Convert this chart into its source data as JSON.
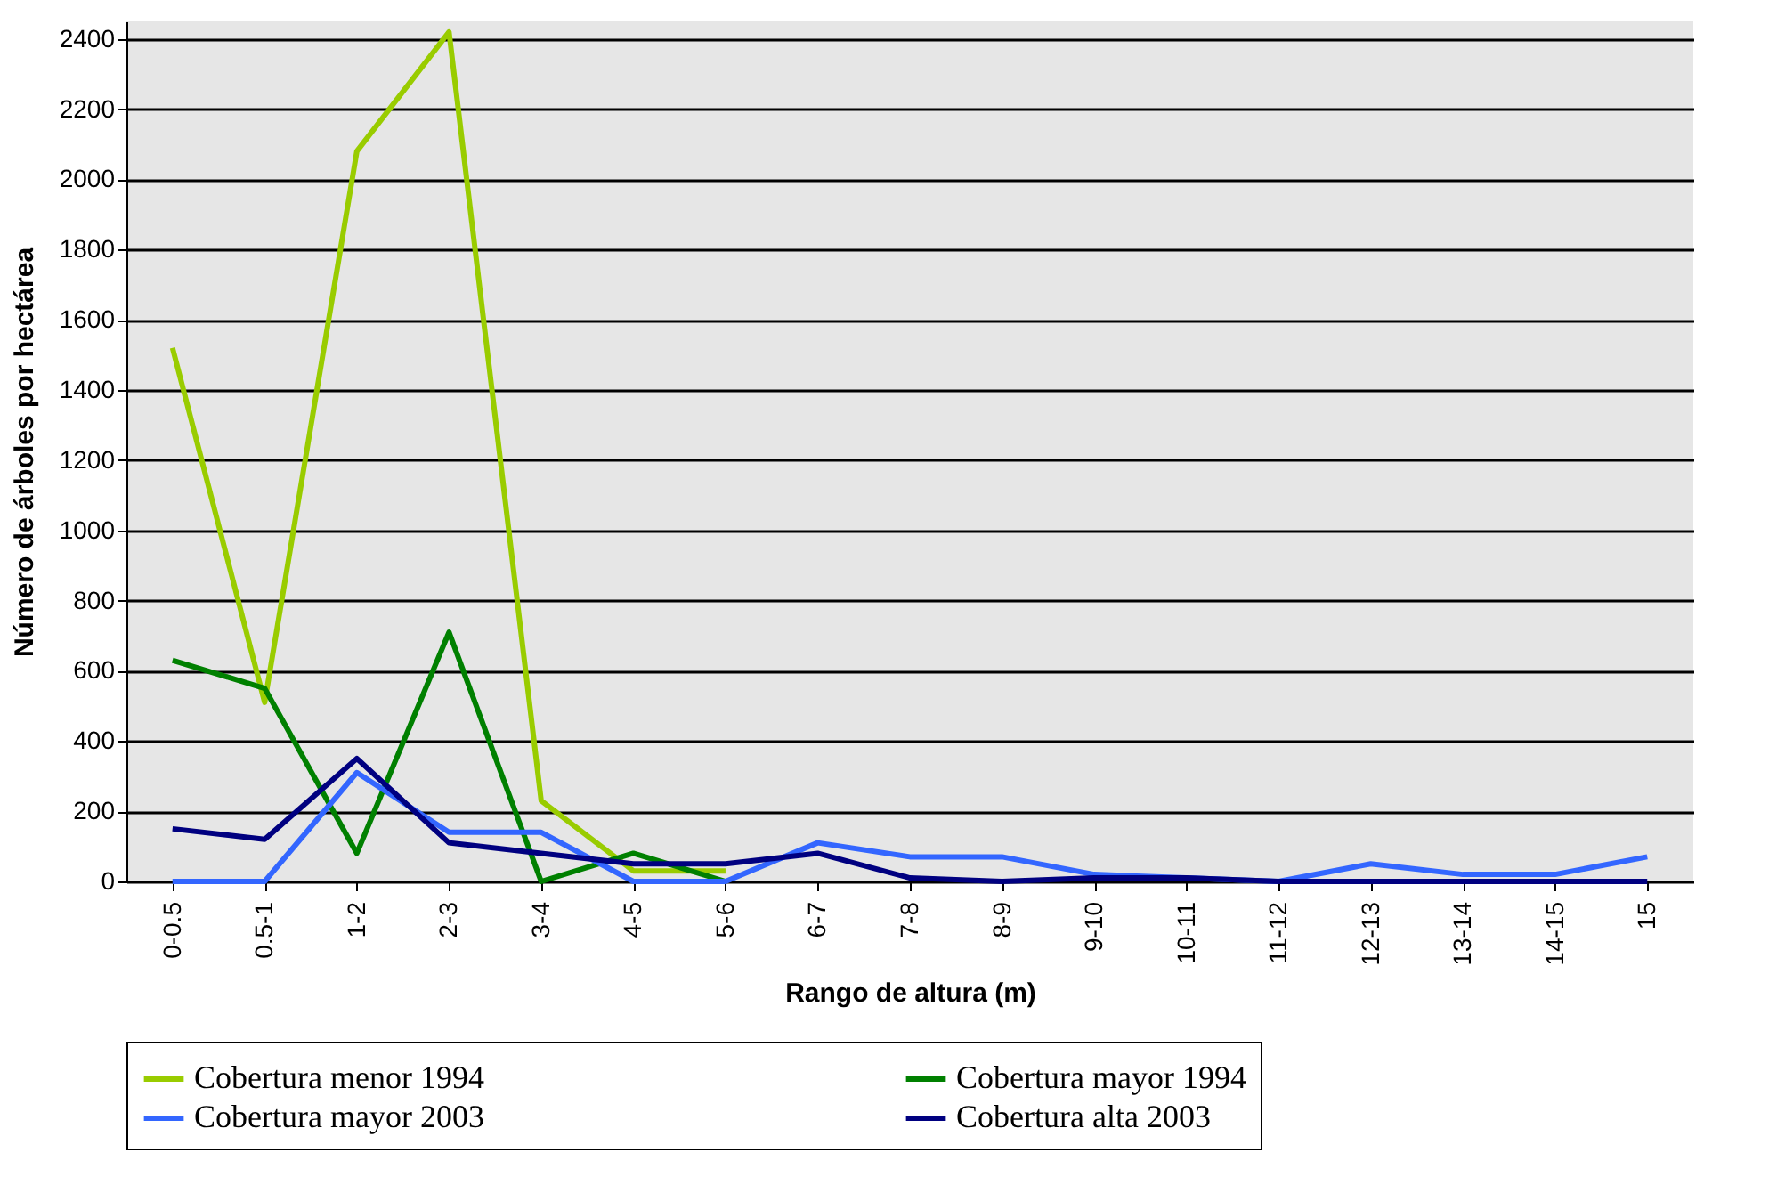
{
  "chart_data": {
    "type": "line",
    "xlabel": "Rango de altura (m)",
    "ylabel": "Número de árboles por hectárea",
    "categories": [
      "0-0.5",
      "0.5-1",
      "1-2",
      "2-3",
      "3-4",
      "4-5",
      "5-6",
      "6-7",
      "7-8",
      "8-9",
      "9-10",
      "10-11",
      "11-12",
      "12-13",
      "13-14",
      "14-15",
      "15"
    ],
    "series": [
      {
        "name": "Cobertura menor 1994",
        "color": "#99cc00",
        "values": [
          1520,
          510,
          2080,
          2420,
          230,
          30,
          30,
          null,
          null,
          null,
          null,
          null,
          null,
          null,
          null,
          null,
          null
        ]
      },
      {
        "name": "Cobertura mayor 1994",
        "color": "#008000",
        "values": [
          630,
          550,
          80,
          710,
          0,
          80,
          0,
          null,
          null,
          null,
          null,
          null,
          null,
          null,
          null,
          null,
          null
        ]
      },
      {
        "name": "Cobertura mayor 2003",
        "color": "#3366ff",
        "values": [
          0,
          0,
          310,
          140,
          140,
          0,
          0,
          110,
          70,
          70,
          20,
          10,
          0,
          50,
          20,
          20,
          70
        ]
      },
      {
        "name": "Cobertura alta 2003",
        "color": "#000080",
        "values": [
          150,
          120,
          350,
          110,
          80,
          50,
          50,
          80,
          10,
          0,
          10,
          10,
          0,
          0,
          0,
          0,
          0
        ]
      }
    ],
    "ylim": [
      0,
      2450
    ],
    "yticks": [
      0,
      200,
      400,
      600,
      800,
      1000,
      1200,
      1400,
      1600,
      1800,
      2000,
      2200,
      2400
    ],
    "grid": "y",
    "legend": "bottom",
    "marker": "none",
    "line_style": "solid"
  }
}
